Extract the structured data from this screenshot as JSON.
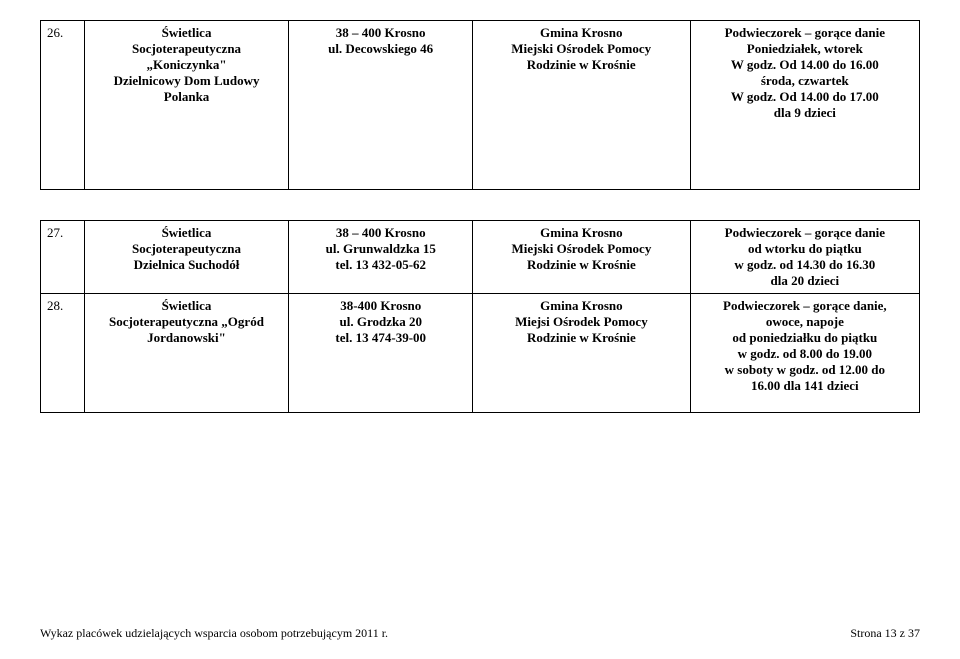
{
  "table1": {
    "rows": [
      {
        "num": "26.",
        "name_l1": "Świetlica",
        "name_l2": "Socjoterapeutyczna",
        "name_l3": "„Koniczynka\"",
        "name_l4": "Dzielnicowy Dom Ludowy",
        "name_l5": "Polanka",
        "addr_l1": "38 – 400 Krosno",
        "addr_l2": "ul. Decowskiego 46",
        "org_l1": "Gmina Krosno",
        "org_l2": "Miejski Ośrodek Pomocy",
        "org_l3": "Rodzinie w Krośnie",
        "info_l1": "Podwieczorek – gorące danie",
        "info_l2": "Poniedziałek, wtorek",
        "info_l3": "W godz. Od 14.00 do 16.00",
        "info_l4": "środa, czwartek",
        "info_l5": "W godz. Od 14.00 do 17.00",
        "info_l6": "dla 9 dzieci"
      }
    ]
  },
  "table2": {
    "rows": [
      {
        "num": "27.",
        "name_l1": "Świetlica",
        "name_l2": "Socjoterapeutyczna",
        "name_l3": "Dzielnica Suchodół",
        "addr_l1": "38 – 400 Krosno",
        "addr_l2": "ul. Grunwaldzka 15",
        "addr_l3": "tel. 13 432-05-62",
        "org_l1": "Gmina Krosno",
        "org_l2": "Miejski Ośrodek Pomocy",
        "org_l3": "Rodzinie w Krośnie",
        "info_l1": "Podwieczorek – gorące danie",
        "info_l2": "od wtorku do piątku",
        "info_l3": "w godz. od 14.30 do 16.30",
        "info_l4": "dla 20 dzieci"
      },
      {
        "num": "28.",
        "name_l1": "Świetlica",
        "name_l2": "Socjoterapeutyczna „Ogród",
        "name_l3": "Jordanowski\"",
        "addr_l1": "38-400 Krosno",
        "addr_l2": "ul. Grodzka 20",
        "addr_l3": "tel. 13 474-39-00",
        "org_l1": "Gmina Krosno",
        "org_l2": "Miejsi Ośrodek Pomocy",
        "org_l3": "Rodzinie w Krośnie",
        "info_l1": "Podwieczorek – gorące danie,",
        "info_l2": "owoce, napoje",
        "info_l3": "od poniedziałku do piątku",
        "info_l4": "w godz. od 8.00 do 19.00",
        "info_l5": "w soboty w godz. od 12.00 do",
        "info_l6": "16.00 dla 141 dzieci"
      }
    ]
  },
  "footer": {
    "left": "Wykaz placówek udzielających wsparcia osobom potrzebującym 2011 r.",
    "right": "Strona 13 z 37"
  }
}
